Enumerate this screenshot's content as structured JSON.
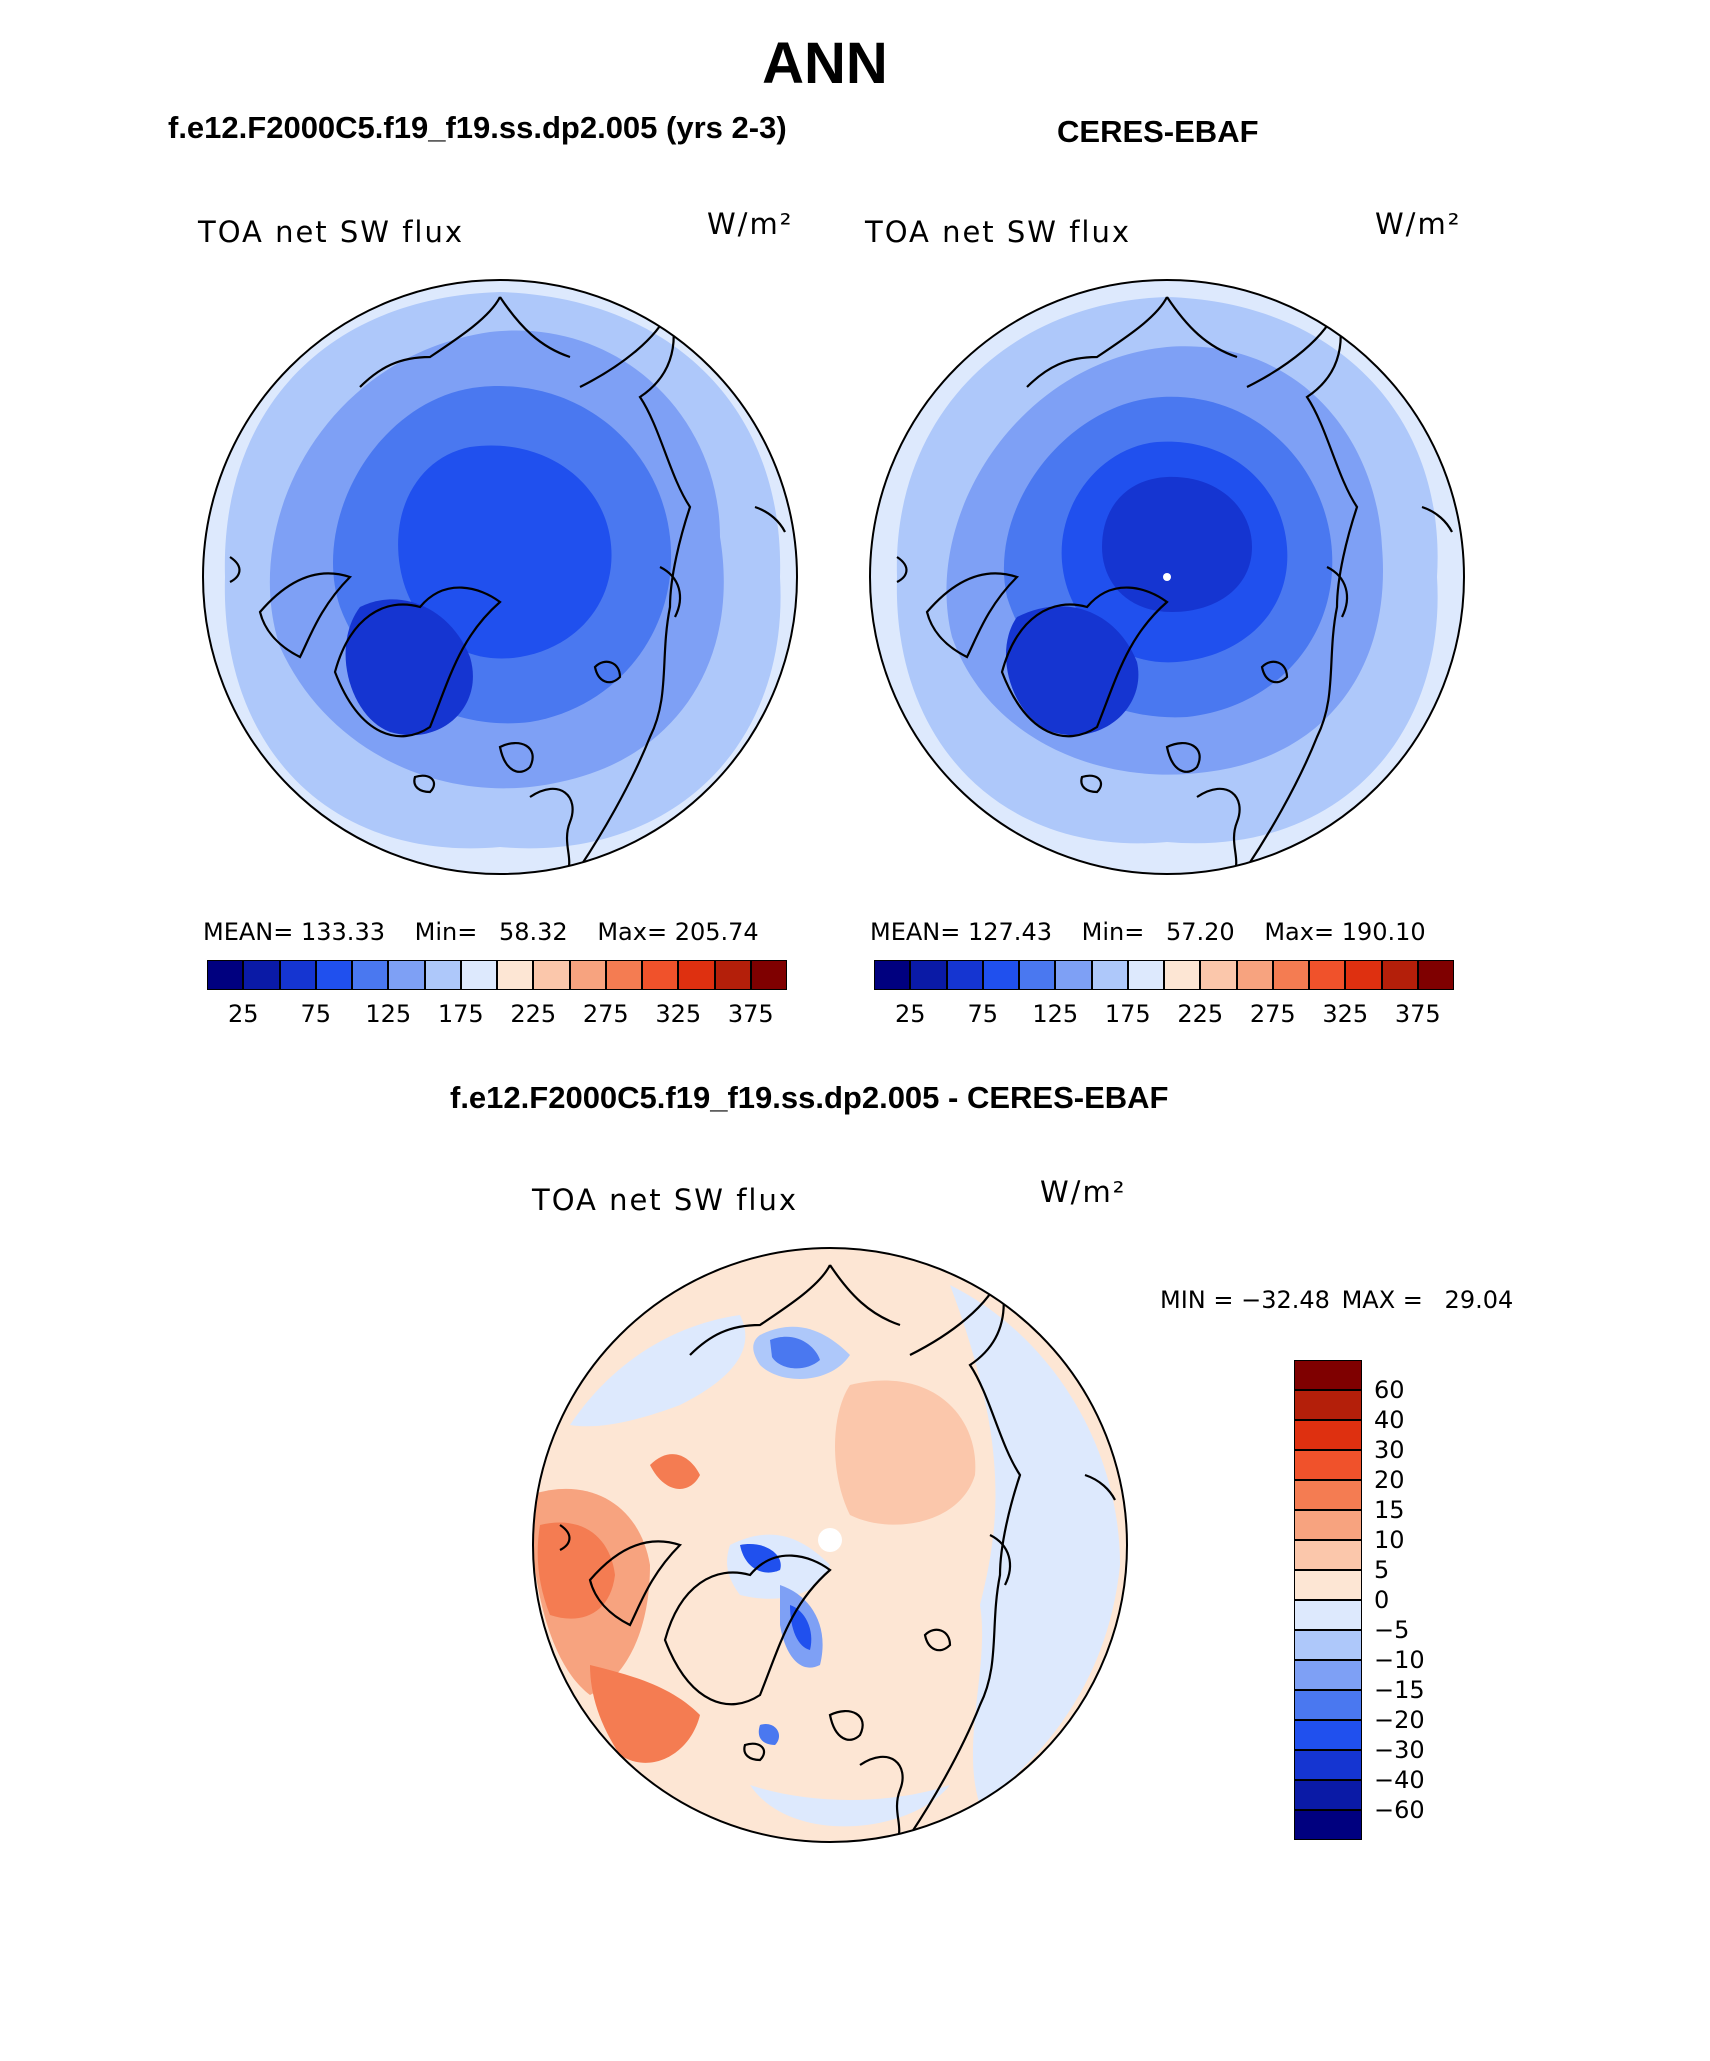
{
  "page": {
    "title": "ANN",
    "left_header": "f.e12.F2000C5.f19_f19.ss.dp2.005 (yrs 2-3)",
    "right_header": "CERES-EBAF",
    "diff_header": "f.e12.F2000C5.f19_f19.ss.dp2.005 - CERES-EBAF"
  },
  "chart_data": [
    {
      "type": "heatmap",
      "projection": "north polar stereographic",
      "title": "TOA net SW flux",
      "units": "W/m²",
      "stats": {
        "mean_label": "MEAN=",
        "mean": "133.33",
        "min_label": "Min=",
        "min": "58.32",
        "max_label": "Max=",
        "max": "205.74"
      },
      "colorbar": {
        "orientation": "horizontal",
        "tick_labels": [
          "25",
          "75",
          "125",
          "175",
          "225",
          "275",
          "325",
          "375"
        ],
        "colors": [
          "#00007f",
          "#0a1aa6",
          "#1535d1",
          "#2050ee",
          "#4a78f0",
          "#7ea0f5",
          "#aec8fa",
          "#dde9fd",
          "#fde6d4",
          "#fbc7ab",
          "#f7a37f",
          "#f47c52",
          "#f0522b",
          "#de3010",
          "#b41f0a",
          "#7f0000"
        ]
      }
    },
    {
      "type": "heatmap",
      "projection": "north polar stereographic",
      "title": "TOA net SW flux",
      "units": "W/m²",
      "stats": {
        "mean_label": "MEAN=",
        "mean": "127.43",
        "min_label": "Min=",
        "min": "57.20",
        "max_label": "Max=",
        "max": "190.10"
      },
      "colorbar": {
        "orientation": "horizontal",
        "tick_labels": [
          "25",
          "75",
          "125",
          "175",
          "225",
          "275",
          "325",
          "375"
        ],
        "colors": [
          "#00007f",
          "#0a1aa6",
          "#1535d1",
          "#2050ee",
          "#4a78f0",
          "#7ea0f5",
          "#aec8fa",
          "#dde9fd",
          "#fde6d4",
          "#fbc7ab",
          "#f7a37f",
          "#f47c52",
          "#f0522b",
          "#de3010",
          "#b41f0a",
          "#7f0000"
        ]
      }
    },
    {
      "type": "heatmap",
      "projection": "north polar stereographic",
      "title": "TOA net SW flux",
      "units": "W/m²",
      "stats": {
        "min_label": "MIN =",
        "min": "−32.48",
        "max_label": "MAX =",
        "max": "29.04"
      },
      "colorbar": {
        "orientation": "vertical",
        "tick_labels": [
          "60",
          "40",
          "30",
          "20",
          "15",
          "10",
          "5",
          "0",
          "−5",
          "−10",
          "−15",
          "−20",
          "−30",
          "−40",
          "−60"
        ],
        "colors": [
          "#7f0000",
          "#b41f0a",
          "#de3010",
          "#f0522b",
          "#f47c52",
          "#f7a37f",
          "#fbc7ab",
          "#fde6d4",
          "#dde9fd",
          "#aec8fa",
          "#7ea0f5",
          "#4a78f0",
          "#2050ee",
          "#1535d1",
          "#0a1aa6",
          "#00007f"
        ]
      }
    }
  ]
}
